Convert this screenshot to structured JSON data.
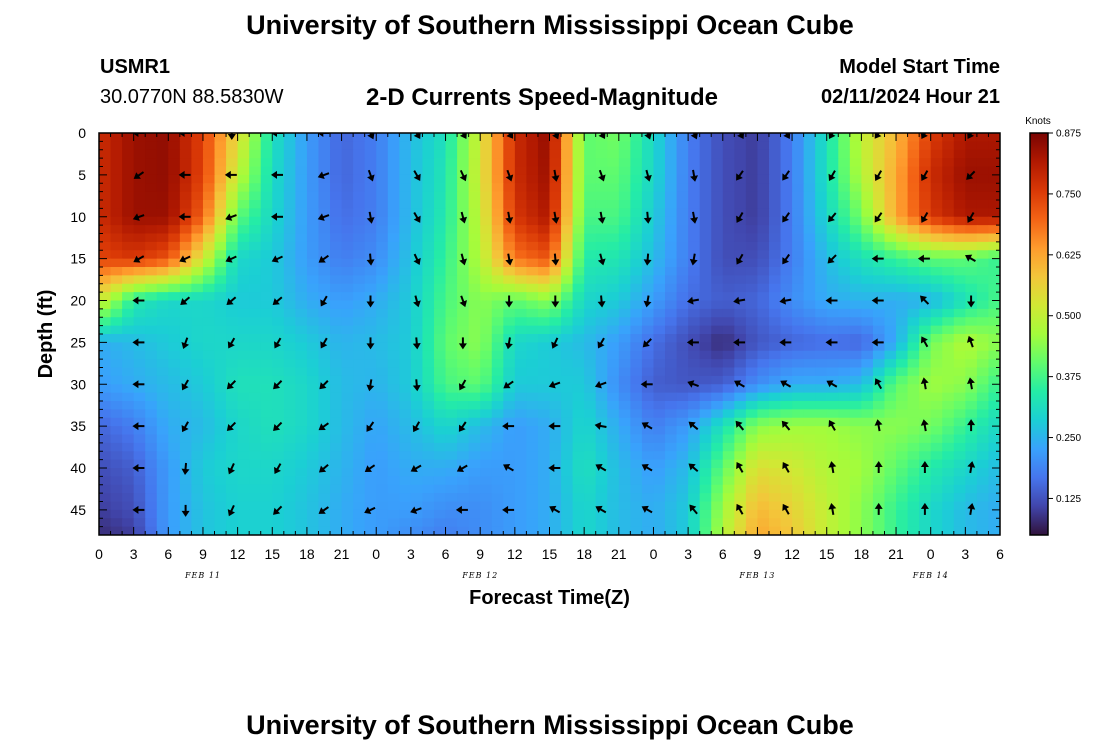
{
  "header": {
    "title": "University of Southern Mississippi Ocean Cube",
    "station": "USMR1",
    "coordinates": "30.0770N  88.5830W",
    "product": "2-D Currents Speed-Magnitude",
    "model_start_label": "Model Start Time",
    "model_start_value": "02/11/2024 Hour 21"
  },
  "footer": {
    "title": "University of Southern Mississippi Ocean Cube"
  },
  "chart_data": {
    "type": "heatmap",
    "title": "2-D Currents Speed-Magnitude",
    "xlabel": "Forecast Time(Z)",
    "ylabel": "Depth (ft)",
    "x_tick_labels": [
      "0",
      "3",
      "6",
      "9",
      "12",
      "15",
      "18",
      "21",
      "0",
      "3",
      "6",
      "9",
      "12",
      "15",
      "18",
      "21",
      "0",
      "3",
      "6",
      "9",
      "12",
      "15",
      "18",
      "21",
      "0",
      "3",
      "6"
    ],
    "date_labels": [
      {
        "label": "FEB 11",
        "hour": 9
      },
      {
        "label": "FEB 12",
        "hour": 33
      },
      {
        "label": "FEB 13",
        "hour": 57
      },
      {
        "label": "FEB 14",
        "hour": 72
      }
    ],
    "xlim": [
      0,
      78
    ],
    "y_tick_labels": [
      "0",
      "5",
      "10",
      "15",
      "20",
      "25",
      "30",
      "35",
      "40",
      "45"
    ],
    "y_ticks": [
      0,
      5,
      10,
      15,
      20,
      25,
      30,
      35,
      40,
      45
    ],
    "ylim": [
      0,
      48
    ],
    "colorbar": {
      "label": "Knots",
      "range": [
        0.05,
        0.875
      ],
      "ticks": [
        0.125,
        0.25,
        0.375,
        0.5,
        0.625,
        0.75,
        0.875
      ],
      "tick_labels": [
        "0.125",
        "0.250",
        "0.375",
        "0.500",
        "0.625",
        "0.750",
        "0.875"
      ],
      "colors": [
        "#30123b",
        "#4145ab",
        "#4675ed",
        "#39a2fc",
        "#1bcfd4",
        "#24eca6",
        "#61fc6c",
        "#a4fc3b",
        "#d1e834",
        "#f3c63a",
        "#fe9b2d",
        "#f36315",
        "#d93806",
        "#b11901",
        "#7a0402"
      ]
    },
    "speed_field": {
      "description": "current speed in knots",
      "depths_ft": [
        0,
        5,
        10,
        15,
        20,
        25,
        30,
        35,
        40,
        45,
        48
      ],
      "hours": [
        0,
        3,
        6,
        9,
        12,
        15,
        18,
        21,
        24,
        27,
        30,
        33,
        36,
        39,
        42,
        45,
        48,
        51,
        54,
        57,
        60,
        63,
        66,
        69,
        72,
        75,
        78
      ],
      "values": [
        [
          0.78,
          0.84,
          0.85,
          0.74,
          0.55,
          0.32,
          0.22,
          0.15,
          0.18,
          0.26,
          0.32,
          0.52,
          0.78,
          0.85,
          0.4,
          0.42,
          0.3,
          0.18,
          0.12,
          0.1,
          0.18,
          0.32,
          0.5,
          0.6,
          0.75,
          0.82,
          0.82
        ],
        [
          0.78,
          0.84,
          0.85,
          0.74,
          0.5,
          0.31,
          0.22,
          0.15,
          0.18,
          0.26,
          0.33,
          0.52,
          0.78,
          0.84,
          0.4,
          0.4,
          0.3,
          0.18,
          0.12,
          0.1,
          0.18,
          0.32,
          0.48,
          0.62,
          0.78,
          0.84,
          0.84
        ],
        [
          0.78,
          0.84,
          0.84,
          0.7,
          0.4,
          0.3,
          0.22,
          0.16,
          0.18,
          0.26,
          0.34,
          0.5,
          0.76,
          0.82,
          0.38,
          0.38,
          0.28,
          0.18,
          0.12,
          0.1,
          0.18,
          0.3,
          0.42,
          0.62,
          0.76,
          0.82,
          0.82
        ],
        [
          0.74,
          0.76,
          0.72,
          0.52,
          0.3,
          0.28,
          0.22,
          0.18,
          0.2,
          0.27,
          0.36,
          0.48,
          0.68,
          0.72,
          0.34,
          0.33,
          0.26,
          0.18,
          0.12,
          0.12,
          0.18,
          0.26,
          0.32,
          0.36,
          0.4,
          0.4,
          0.36
        ],
        [
          0.52,
          0.34,
          0.3,
          0.3,
          0.28,
          0.28,
          0.24,
          0.22,
          0.24,
          0.28,
          0.38,
          0.44,
          0.4,
          0.44,
          0.3,
          0.28,
          0.22,
          0.16,
          0.14,
          0.15,
          0.2,
          0.24,
          0.25,
          0.24,
          0.25,
          0.32,
          0.38
        ],
        [
          0.24,
          0.26,
          0.28,
          0.3,
          0.3,
          0.3,
          0.28,
          0.25,
          0.26,
          0.28,
          0.4,
          0.44,
          0.3,
          0.28,
          0.26,
          0.22,
          0.16,
          0.12,
          0.08,
          0.13,
          0.15,
          0.16,
          0.15,
          0.24,
          0.42,
          0.48,
          0.44
        ],
        [
          0.22,
          0.24,
          0.26,
          0.28,
          0.32,
          0.32,
          0.3,
          0.26,
          0.25,
          0.28,
          0.38,
          0.4,
          0.28,
          0.28,
          0.28,
          0.2,
          0.14,
          0.13,
          0.14,
          0.2,
          0.24,
          0.24,
          0.26,
          0.4,
          0.46,
          0.44,
          0.36
        ],
        [
          0.15,
          0.18,
          0.24,
          0.26,
          0.3,
          0.32,
          0.3,
          0.26,
          0.23,
          0.26,
          0.3,
          0.26,
          0.22,
          0.24,
          0.3,
          0.24,
          0.18,
          0.22,
          0.32,
          0.44,
          0.46,
          0.46,
          0.44,
          0.44,
          0.42,
          0.36,
          0.3
        ],
        [
          0.12,
          0.14,
          0.22,
          0.28,
          0.3,
          0.3,
          0.28,
          0.25,
          0.22,
          0.24,
          0.24,
          0.22,
          0.22,
          0.24,
          0.32,
          0.26,
          0.22,
          0.26,
          0.4,
          0.54,
          0.52,
          0.48,
          0.46,
          0.4,
          0.34,
          0.3,
          0.26
        ],
        [
          0.1,
          0.12,
          0.22,
          0.27,
          0.29,
          0.29,
          0.27,
          0.24,
          0.22,
          0.22,
          0.2,
          0.2,
          0.22,
          0.24,
          0.3,
          0.26,
          0.24,
          0.28,
          0.46,
          0.6,
          0.56,
          0.5,
          0.44,
          0.36,
          0.3,
          0.26,
          0.24
        ],
        [
          0.08,
          0.1,
          0.22,
          0.27,
          0.29,
          0.29,
          0.27,
          0.24,
          0.22,
          0.2,
          0.18,
          0.2,
          0.22,
          0.24,
          0.3,
          0.26,
          0.24,
          0.28,
          0.48,
          0.62,
          0.58,
          0.5,
          0.44,
          0.36,
          0.3,
          0.26,
          0.24
        ]
      ]
    },
    "current_vectors": {
      "description": "arrow direction, degrees clockwise from north (toward)",
      "depths_ft": [
        0,
        5,
        10,
        15,
        20,
        25,
        30,
        35,
        40,
        45
      ],
      "hours": [
        3.5,
        7.5,
        11.5,
        15.5,
        19.5,
        23.5,
        27.5,
        31.5,
        35.5,
        39.5,
        43.5,
        47.5,
        51.5,
        55.5,
        59.5,
        63.5,
        67.5,
        71.5,
        75.5
      ],
      "directions": [
        [
          270,
          270,
          180,
          270,
          270,
          155,
          150,
          150,
          145,
          155,
          150,
          160,
          155,
          150,
          150,
          210,
          215,
          210,
          210
        ],
        [
          235,
          270,
          270,
          270,
          250,
          160,
          150,
          155,
          160,
          170,
          160,
          165,
          170,
          215,
          215,
          210,
          210,
          210,
          225
        ],
        [
          250,
          270,
          250,
          270,
          250,
          170,
          150,
          165,
          170,
          170,
          170,
          175,
          170,
          210,
          215,
          220,
          215,
          210,
          210
        ],
        [
          240,
          245,
          245,
          245,
          235,
          175,
          155,
          165,
          170,
          175,
          165,
          185,
          190,
          210,
          215,
          225,
          270,
          270,
          300
        ],
        [
          270,
          230,
          230,
          230,
          210,
          180,
          165,
          160,
          180,
          180,
          175,
          190,
          260,
          260,
          260,
          270,
          270,
          315,
          180
        ],
        [
          270,
          200,
          210,
          210,
          210,
          180,
          175,
          180,
          190,
          205,
          210,
          225,
          270,
          270,
          270,
          270,
          270,
          330,
          340
        ],
        [
          270,
          210,
          225,
          225,
          225,
          190,
          175,
          210,
          235,
          250,
          250,
          270,
          290,
          300,
          300,
          300,
          330,
          350,
          350
        ],
        [
          270,
          210,
          225,
          225,
          235,
          215,
          210,
          215,
          270,
          270,
          280,
          300,
          310,
          320,
          320,
          330,
          350,
          350,
          0
        ],
        [
          270,
          185,
          205,
          210,
          230,
          235,
          240,
          240,
          300,
          270,
          300,
          300,
          310,
          330,
          330,
          350,
          0,
          0,
          10
        ],
        [
          270,
          180,
          205,
          225,
          235,
          245,
          250,
          270,
          270,
          300,
          300,
          300,
          320,
          330,
          330,
          350,
          0,
          0,
          10
        ]
      ]
    }
  }
}
